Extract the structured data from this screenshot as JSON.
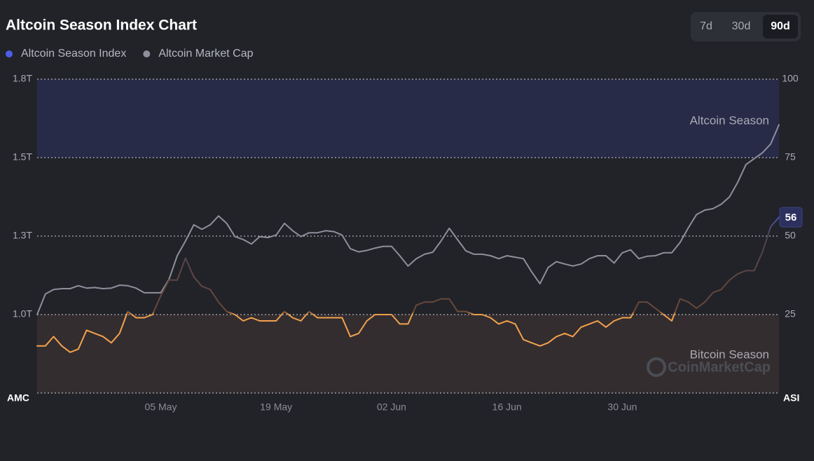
{
  "chart_data": {
    "type": "line",
    "title": "Altcoin Season Index Chart",
    "range_buttons": [
      "7d",
      "30d",
      "90d"
    ],
    "selected_range": "90d",
    "y_label": "AMC",
    "y2_label": "ASI",
    "watermark": "CoinMarketCap",
    "categories": [
      null,
      null,
      null,
      null,
      null,
      null,
      null,
      null,
      null,
      null,
      null,
      null,
      null,
      null,
      null,
      "05 May",
      null,
      null,
      null,
      null,
      null,
      null,
      null,
      null,
      null,
      null,
      null,
      null,
      null,
      "19 May",
      null,
      null,
      null,
      null,
      null,
      null,
      null,
      null,
      null,
      null,
      null,
      null,
      null,
      "02 Jun",
      null,
      null,
      null,
      null,
      null,
      null,
      null,
      null,
      null,
      null,
      null,
      null,
      null,
      "16 Jun",
      null,
      null,
      null,
      null,
      null,
      null,
      null,
      null,
      null,
      null,
      null,
      null,
      null,
      "30 Jun",
      null,
      null,
      null,
      null,
      null,
      null,
      null,
      null,
      null,
      null,
      null,
      null,
      null,
      null,
      null,
      null,
      null,
      null,
      null
    ],
    "series": [
      {
        "name": "Altcoin Season Index",
        "color": "#4b5de8",
        "low_color": "#f2a24c",
        "axis": "y2",
        "values": [
          15,
          15,
          18,
          15,
          13,
          14,
          20,
          19,
          18,
          16,
          19,
          26,
          24,
          24,
          25,
          31,
          36,
          36,
          43,
          37,
          34,
          33,
          29,
          26,
          25,
          23,
          24,
          23,
          23,
          23,
          26,
          24,
          23,
          26,
          24,
          24,
          24,
          24,
          18,
          19,
          23,
          25,
          25,
          25,
          22,
          22,
          28,
          29,
          29,
          30,
          30,
          26,
          26,
          25,
          25,
          24,
          22,
          23,
          22,
          17,
          16,
          15,
          16,
          18,
          19,
          18,
          21,
          22,
          23,
          21,
          23,
          24,
          24,
          29,
          29,
          27,
          25,
          23,
          30,
          29,
          27,
          29,
          32,
          33,
          36,
          38,
          39,
          39,
          45,
          53,
          56
        ]
      },
      {
        "name": "Altcoin Market Cap",
        "color": "#8e8f9a",
        "axis": "y",
        "values": [
          1.0,
          1.07,
          1.085,
          1.088,
          1.088,
          1.098,
          1.09,
          1.092,
          1.088,
          1.09,
          1.1,
          1.098,
          1.09,
          1.074,
          1.074,
          1.074,
          1.12,
          1.2,
          1.25,
          1.305,
          1.29,
          1.305,
          1.335,
          1.31,
          1.265,
          1.255,
          1.24,
          1.265,
          1.262,
          1.27,
          1.31,
          1.285,
          1.265,
          1.278,
          1.278,
          1.285,
          1.282,
          1.27,
          1.224,
          1.213,
          1.218,
          1.226,
          1.232,
          1.232,
          1.2,
          1.165,
          1.19,
          1.205,
          1.212,
          1.25,
          1.293,
          1.255,
          1.217,
          1.205,
          1.205,
          1.2,
          1.19,
          1.2,
          1.195,
          1.19,
          1.145,
          1.105,
          1.16,
          1.18,
          1.172,
          1.165,
          1.172,
          1.19,
          1.2,
          1.2,
          1.175,
          1.21,
          1.22,
          1.19,
          1.198,
          1.2,
          1.21,
          1.21,
          1.245,
          1.295,
          1.34,
          1.355,
          1.36,
          1.375,
          1.4,
          1.45,
          1.51,
          1.53,
          1.55,
          1.58,
          1.645
        ]
      }
    ],
    "bands": [
      {
        "label": "Altcoin Season",
        "from": 75,
        "to": 100,
        "color": "#272b47"
      },
      {
        "label": "Bitcoin Season",
        "from": 0,
        "to": 25,
        "color": "#342d2f"
      }
    ],
    "ylim": [
      0.7333,
      1.8
    ],
    "yticks": [
      {
        "value": 1.0,
        "label": "1.0T"
      },
      {
        "value": 1.2667,
        "label": "1.3T"
      },
      {
        "value": 1.5333,
        "label": "1.5T"
      },
      {
        "value": 1.8,
        "label": "1.8T"
      }
    ],
    "y2lim": [
      0,
      100
    ],
    "y2ticks": [
      25,
      50,
      75,
      100
    ],
    "grid": true
  }
}
